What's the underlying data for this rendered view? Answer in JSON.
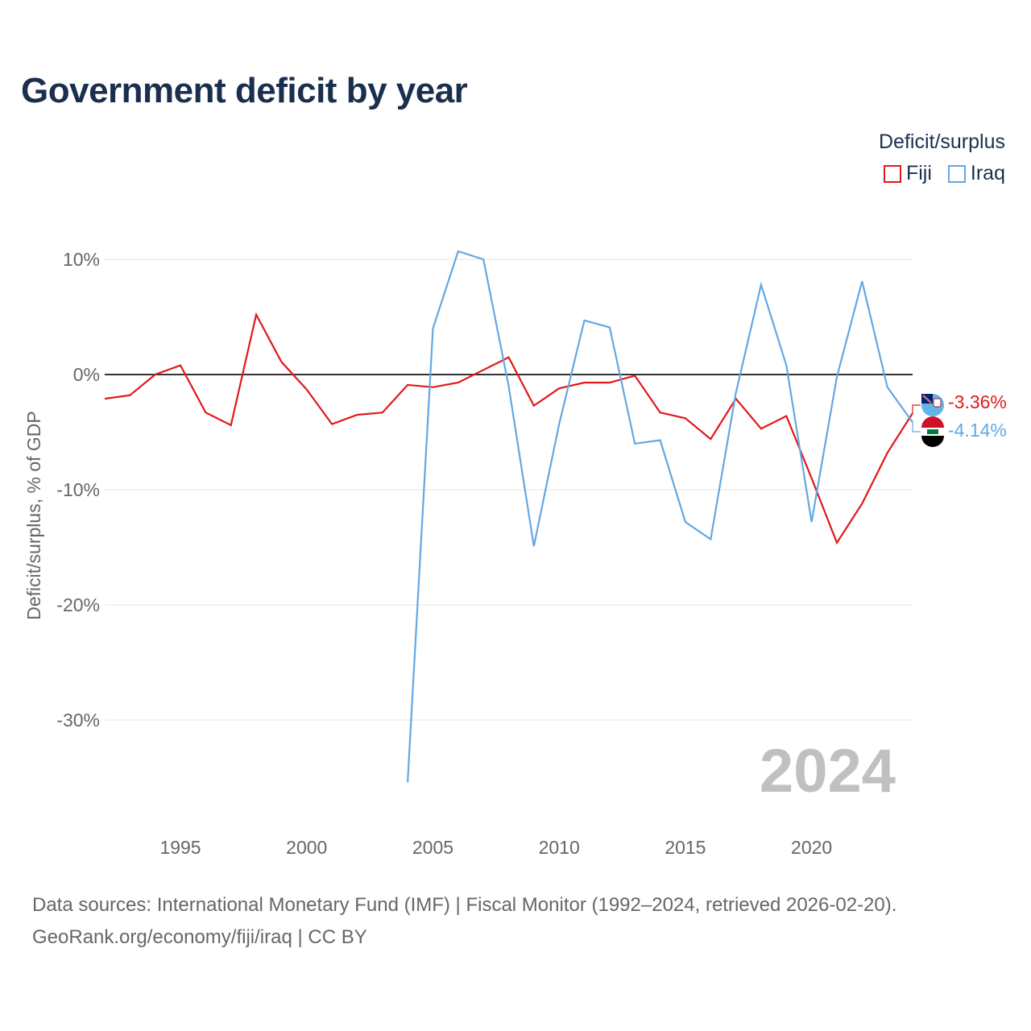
{
  "title": "Government deficit by year",
  "legend": {
    "title": "Deficit/surplus",
    "items": [
      {
        "label": "Fiji",
        "color": "#e0191b"
      },
      {
        "label": "Iraq",
        "color": "#63a8e3"
      }
    ]
  },
  "footer": {
    "line1": "Data sources: International Monetary Fund (IMF) | Fiscal Monitor (1992–2024, retrieved 2026-02-20).",
    "line2": "GeoRank.org/economy/fiji/iraq | CC BY"
  },
  "chart_data": {
    "type": "line",
    "title": "Government deficit by year",
    "ylabel": "Deficit/surplus, % of GDP",
    "xlabel": "",
    "xlim": [
      1992,
      2024
    ],
    "ylim": [
      -38,
      14
    ],
    "yticks": [
      10,
      0,
      -10,
      -20,
      -30
    ],
    "ytick_labels": [
      "10%",
      "0%",
      "-10%",
      "-20%",
      "-30%"
    ],
    "xticks": [
      1995,
      2000,
      2005,
      2010,
      2015,
      2020
    ],
    "xtick_labels": [
      "1995",
      "2000",
      "2005",
      "2010",
      "2015",
      "2020"
    ],
    "year_watermark": "2024",
    "series": [
      {
        "name": "Fiji",
        "color": "#e0191b",
        "end_label": "-3.36%",
        "points": [
          [
            1992,
            -2.1
          ],
          [
            1993,
            -1.8
          ],
          [
            1994,
            0.0
          ],
          [
            1995,
            0.8
          ],
          [
            1996,
            -3.3
          ],
          [
            1997,
            -4.4
          ],
          [
            1998,
            5.2
          ],
          [
            1999,
            1.1
          ],
          [
            2000,
            -1.3
          ],
          [
            2001,
            -4.3
          ],
          [
            2002,
            -3.5
          ],
          [
            2003,
            -3.3
          ],
          [
            2004,
            -0.9
          ],
          [
            2005,
            -1.1
          ],
          [
            2006,
            -0.7
          ],
          [
            2007,
            0.4
          ],
          [
            2008,
            1.5
          ],
          [
            2009,
            -2.7
          ],
          [
            2010,
            -1.2
          ],
          [
            2011,
            -0.7
          ],
          [
            2012,
            -0.7
          ],
          [
            2013,
            -0.1
          ],
          [
            2014,
            -3.3
          ],
          [
            2015,
            -3.8
          ],
          [
            2016,
            -5.6
          ],
          [
            2017,
            -2.1
          ],
          [
            2018,
            -4.7
          ],
          [
            2019,
            -3.6
          ],
          [
            2020,
            -9.0
          ],
          [
            2021,
            -14.6
          ],
          [
            2022,
            -11.2
          ],
          [
            2023,
            -6.8
          ],
          [
            2024,
            -3.36
          ]
        ]
      },
      {
        "name": "Iraq",
        "color": "#63a8e3",
        "end_label": "-4.14%",
        "points": [
          [
            2004,
            -35.4
          ],
          [
            2005,
            4.0
          ],
          [
            2006,
            10.7
          ],
          [
            2007,
            10.0
          ],
          [
            2008,
            -1.0
          ],
          [
            2009,
            -14.9
          ],
          [
            2010,
            -4.3
          ],
          [
            2011,
            4.7
          ],
          [
            2012,
            4.1
          ],
          [
            2013,
            -6.0
          ],
          [
            2014,
            -5.7
          ],
          [
            2015,
            -12.8
          ],
          [
            2016,
            -14.3
          ],
          [
            2017,
            -1.6
          ],
          [
            2018,
            7.8
          ],
          [
            2019,
            0.8
          ],
          [
            2020,
            -12.8
          ],
          [
            2021,
            -0.2
          ],
          [
            2022,
            8.1
          ],
          [
            2023,
            -1.1
          ],
          [
            2024,
            -4.14
          ]
        ]
      }
    ]
  }
}
